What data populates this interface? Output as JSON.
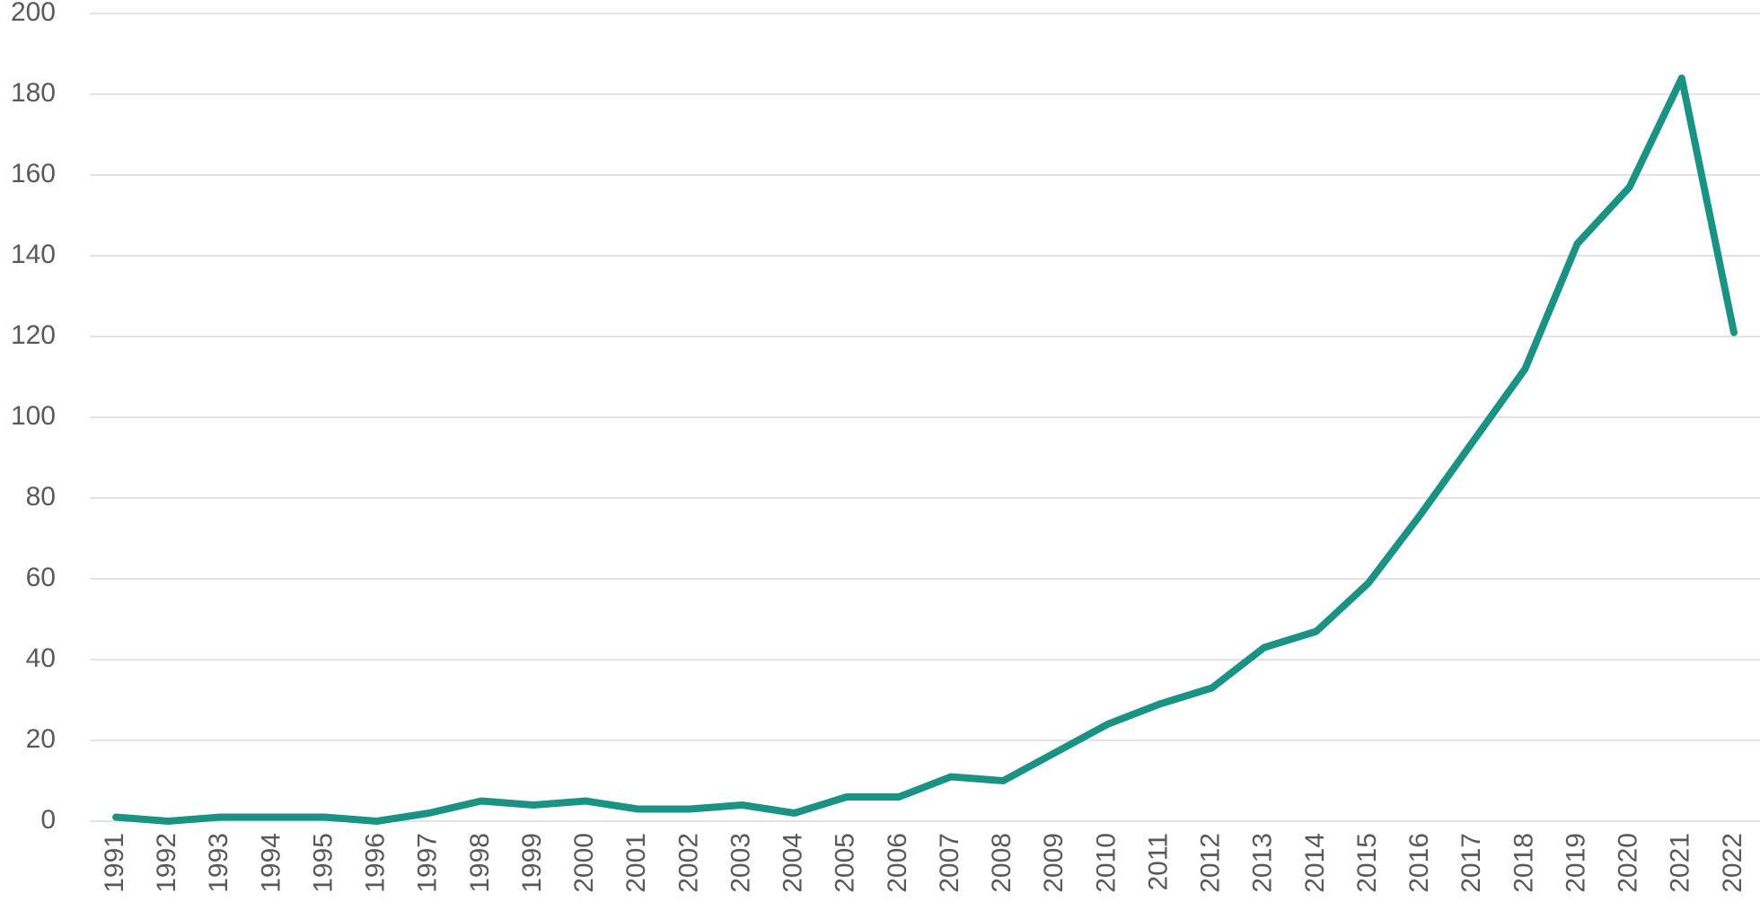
{
  "chart_data": {
    "type": "line",
    "categories": [
      "1991",
      "1992",
      "1993",
      "1994",
      "1995",
      "1996",
      "1997",
      "1998",
      "1999",
      "2000",
      "2001",
      "2002",
      "2003",
      "2004",
      "2005",
      "2006",
      "2007",
      "2008",
      "2009",
      "2010",
      "2011",
      "2012",
      "2013",
      "2014",
      "2015",
      "2016",
      "2017",
      "2018",
      "2019",
      "2020",
      "2021",
      "2022"
    ],
    "series": [
      {
        "color": "#1a9384",
        "values": [
          1,
          0,
          1,
          1,
          1,
          0,
          2,
          5,
          4,
          5,
          3,
          3,
          4,
          2,
          6,
          6,
          11,
          10,
          17,
          24,
          29,
          33,
          43,
          47,
          59,
          76,
          94,
          112,
          143,
          157,
          184,
          121
        ]
      }
    ],
    "ylim": [
      0,
      200
    ],
    "yticks": [
      0,
      20,
      40,
      60,
      80,
      100,
      120,
      140,
      160,
      180,
      200
    ],
    "grid": true
  }
}
